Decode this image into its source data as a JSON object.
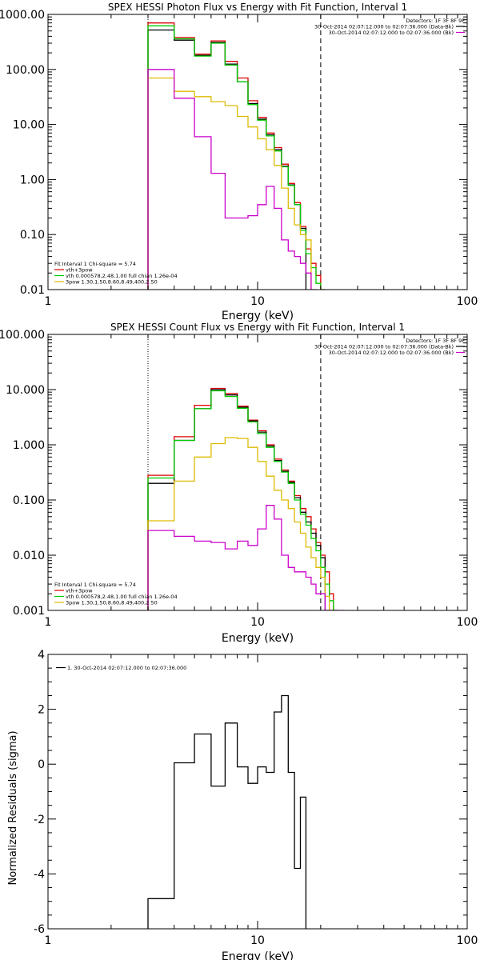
{
  "chart_data": [
    {
      "type": "line",
      "subtype": "step",
      "title": "SPEX HESSI Photon Flux vs Energy with Fit Function, Interval 1",
      "xlabel": "Energy (keV)",
      "ylabel": "",
      "xscale": "log",
      "yscale": "log",
      "xlim": [
        1,
        100
      ],
      "ylim": [
        0.01,
        1000
      ],
      "xticks": [
        "1",
        "10",
        "100"
      ],
      "yticks": [
        "0.01",
        "0.10",
        "1.00",
        "10.00",
        "100.00",
        "1000.00"
      ],
      "vlines": [
        {
          "x": 3,
          "style": "dotted"
        },
        {
          "x": 20,
          "style": "dashed"
        }
      ],
      "legend_topright": {
        "header": "Detectors: 1F 3F 8F 9F",
        "items": [
          {
            "label": "30-Oct-2014 02:07:12.000 to 02:07:36.000 (Data-Bk)",
            "color": "#000000"
          },
          {
            "label": "30-Oct-2014 02:07:12.000 to 02:07:36.000 (Bk)",
            "color": "#cc00cc"
          }
        ]
      },
      "legend_bottomleft": {
        "header": "Fit Interval 1    Chi-square = 5.74",
        "items": [
          {
            "label": "vth+3pow",
            "color": "#dd0000"
          },
          {
            "label": "vth 0.000578,2.48,1.00  full chian 1.26e-04",
            "color": "#00cc00"
          },
          {
            "label": "3pow 1.30,1.50,8.60,8.49,400,2.50",
            "color": "#ddbb00"
          }
        ]
      },
      "edges": [
        3.0,
        3.5,
        4.0,
        4.5,
        5.0,
        5.5,
        6.0,
        6.5,
        7.0,
        7.5,
        8.0,
        8.5,
        9.0,
        9.5,
        10.0,
        11.0,
        12.0,
        13.0,
        14.0,
        15.0,
        16.0,
        17.0,
        18.0,
        19.0,
        20.0,
        21.0,
        22.0,
        23.0,
        24.0,
        26.0
      ],
      "series": [
        {
          "name": "vth+3pow",
          "color": "#dd0000",
          "values": [
            700,
            700,
            380,
            380,
            190,
            190,
            330,
            330,
            140,
            140,
            70,
            70,
            27,
            27,
            13.5,
            7,
            3.8,
            1.9,
            0.85,
            0.38,
            0.14,
            0.055,
            0.03,
            0.018,
            0.008,
            null,
            null,
            null,
            null
          ]
        },
        {
          "name": "Data-Bk",
          "color": "#000000",
          "values": [
            520,
            520,
            340,
            340,
            180,
            180,
            310,
            310,
            125,
            125,
            60,
            60,
            24,
            24,
            12.5,
            6.5,
            3.5,
            1.75,
            0.8,
            0.35,
            0.13,
            null,
            null,
            null,
            null,
            null,
            null,
            null,
            null
          ]
        },
        {
          "name": "vth",
          "color": "#00cc00",
          "values": [
            620,
            620,
            360,
            360,
            175,
            175,
            300,
            300,
            120,
            120,
            60,
            60,
            23,
            23,
            12,
            6.2,
            3.3,
            1.7,
            0.78,
            0.35,
            0.12,
            0.045,
            0.025,
            0.013,
            0.006,
            null,
            null,
            null,
            null
          ]
        },
        {
          "name": "3pow",
          "color": "#ddbb00",
          "values": [
            70,
            70,
            40,
            40,
            32,
            32,
            26,
            26,
            22,
            22,
            14,
            14,
            9,
            9,
            5.5,
            3.5,
            1.8,
            0.7,
            0.3,
            0.15,
            0.1,
            0.08,
            null,
            null,
            null,
            null,
            null,
            null,
            null
          ]
        },
        {
          "name": "Bk",
          "color": "#cc00cc",
          "values": [
            100,
            100,
            30,
            30,
            6,
            6,
            1.3,
            1.3,
            0.2,
            0.2,
            0.2,
            0.2,
            0.22,
            0.22,
            0.35,
            0.75,
            0.3,
            0.08,
            0.05,
            0.04,
            0.03,
            0.02,
            0.01,
            null,
            null,
            null,
            null,
            null,
            null
          ]
        }
      ]
    },
    {
      "type": "line",
      "subtype": "step",
      "title": "SPEX HESSI Count Flux vs Energy with Fit Function, Interval 1",
      "xlabel": "Energy (keV)",
      "ylabel": "",
      "xscale": "log",
      "yscale": "log",
      "xlim": [
        1,
        100
      ],
      "ylim": [
        0.001,
        100
      ],
      "xticks": [
        "1",
        "10",
        "100"
      ],
      "yticks": [
        "0.001",
        "0.010",
        "0.100",
        "1.000",
        "10.000",
        "100.000"
      ],
      "vlines": [
        {
          "x": 3,
          "style": "dotted"
        },
        {
          "x": 20,
          "style": "dashed"
        }
      ],
      "legend_topright": {
        "header": "Detectors: 1F 3F 8F 9F",
        "items": [
          {
            "label": "30-Oct-2014 02:07:12.000 to 02:07:36.000 (Data-Bk)",
            "color": "#000000"
          },
          {
            "label": "30-Oct-2014 02:07:12.000 to 02:07:36.000 (Bk)",
            "color": "#cc00cc"
          }
        ]
      },
      "legend_bottomleft": {
        "header": "Fit Interval 1    Chi-square = 5.74",
        "items": [
          {
            "label": "vth+3pow",
            "color": "#dd0000"
          },
          {
            "label": "vth 0.000578,2.48,1.00  full chian 1.26e-04",
            "color": "#00cc00"
          },
          {
            "label": "3pow 1.30,1.50,8.60,8.49,400,2.50",
            "color": "#ddbb00"
          }
        ]
      },
      "edges": [
        3.0,
        4.0,
        5.0,
        6.0,
        7.0,
        8.0,
        9.0,
        10.0,
        11.0,
        12.0,
        13.0,
        14.0,
        15.0,
        16.0,
        17.0,
        18.0,
        19.0,
        20.0,
        21.0,
        22.0,
        23.0,
        24.0,
        26.0,
        28.0
      ],
      "series": [
        {
          "name": "vth+3pow",
          "color": "#dd0000",
          "values": [
            0.28,
            1.4,
            5.2,
            10.5,
            8.5,
            5.0,
            2.8,
            1.8,
            1.0,
            0.55,
            0.35,
            0.22,
            0.12,
            0.07,
            0.05,
            0.03,
            0.017,
            0.01,
            0.005,
            0.002,
            0.001,
            null,
            null
          ]
        },
        {
          "name": "Data-Bk",
          "color": "#000000",
          "values": [
            0.2,
            1.2,
            4.5,
            10.0,
            8.0,
            4.8,
            2.7,
            1.7,
            0.95,
            0.52,
            0.33,
            0.21,
            0.11,
            0.06,
            0.04,
            0.025,
            0.015,
            0.009,
            null,
            null,
            null,
            null,
            null
          ]
        },
        {
          "name": "vth",
          "color": "#00cc00",
          "values": [
            0.25,
            1.2,
            4.5,
            9.5,
            7.5,
            4.6,
            2.6,
            1.6,
            0.9,
            0.5,
            0.32,
            0.2,
            0.1,
            0.055,
            0.035,
            0.02,
            0.012,
            0.006,
            0.003,
            0.0015,
            0.001,
            null,
            null
          ]
        },
        {
          "name": "3pow",
          "color": "#ddbb00",
          "values": [
            0.042,
            0.22,
            0.6,
            1.05,
            1.35,
            1.3,
            0.9,
            0.5,
            0.27,
            0.15,
            0.1,
            0.07,
            0.04,
            0.025,
            0.014,
            0.009,
            0.006,
            0.004,
            0.0018,
            0.001,
            null,
            null,
            null
          ]
        },
        {
          "name": "Bk",
          "color": "#cc00cc",
          "values": [
            0.028,
            0.022,
            0.018,
            0.017,
            0.013,
            0.018,
            0.015,
            0.03,
            0.08,
            0.045,
            0.01,
            0.006,
            0.005,
            0.005,
            0.004,
            0.003,
            0.002,
            0.002,
            0.001,
            0.001,
            0.001,
            0.001,
            null
          ]
        }
      ]
    },
    {
      "type": "line",
      "subtype": "step",
      "title": "",
      "xlabel": "Energy (keV)",
      "ylabel": "Normalized Residuals (sigma)",
      "xscale": "log",
      "yscale": "linear",
      "xlim": [
        1,
        100
      ],
      "ylim": [
        -6,
        4
      ],
      "xticks": [
        "1",
        "10",
        "100"
      ],
      "yticks": [
        "-6",
        "-4",
        "-2",
        "0",
        "2",
        "4"
      ],
      "legend": {
        "items": [
          {
            "label": "1. 30-Oct-2014 02:07:12.000 to 02:07:36.000",
            "color": "#000000"
          }
        ]
      },
      "edges": [
        3.0,
        4.0,
        5.0,
        6.0,
        7.0,
        8.0,
        9.0,
        10.0,
        11.0,
        12.0,
        13.0,
        14.0,
        15.0,
        16.0,
        17.0,
        18.0,
        19.0,
        20.0
      ],
      "series": [
        {
          "name": "residuals",
          "color": "#000000",
          "values": [
            -4.9,
            0.05,
            1.1,
            -0.8,
            1.5,
            -0.1,
            -0.7,
            -0.1,
            -0.3,
            1.9,
            2.5,
            -0.3,
            -3.8,
            -1.2,
            null,
            null,
            null
          ]
        }
      ]
    }
  ]
}
